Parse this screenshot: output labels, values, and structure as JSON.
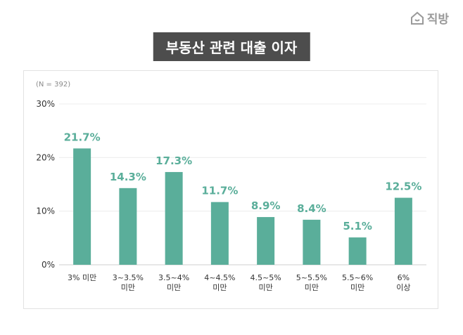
{
  "brand": {
    "name": "직방",
    "icon": "house-icon",
    "color": "#9a9a9a"
  },
  "chart_data": {
    "type": "bar",
    "title": "부동산 관련 대출 이자",
    "note": "(N = 392)",
    "categories": [
      [
        "3% 미만"
      ],
      [
        "3~3.5%",
        "미만"
      ],
      [
        "3.5~4%",
        "미만"
      ],
      [
        "4~4.5%",
        "미만"
      ],
      [
        "4.5~5%",
        "미만"
      ],
      [
        "5~5.5%",
        "미만"
      ],
      [
        "5.5~6%",
        "미만"
      ],
      [
        "6%",
        "이상"
      ]
    ],
    "values": [
      21.7,
      14.3,
      17.3,
      11.7,
      8.9,
      8.4,
      5.1,
      12.5
    ],
    "value_labels": [
      "21.7%",
      "14.3%",
      "17.3%",
      "11.7%",
      "8.9%",
      "8.4%",
      "5.1%",
      "12.5%"
    ],
    "ylim": [
      0,
      30
    ],
    "yticks": [
      0,
      10,
      20,
      30
    ],
    "ytick_labels": [
      "0%",
      "10%",
      "20%",
      "30%"
    ],
    "grid": true,
    "bar_color": "#5aae9a",
    "value_label_color": "#5aae9a"
  }
}
